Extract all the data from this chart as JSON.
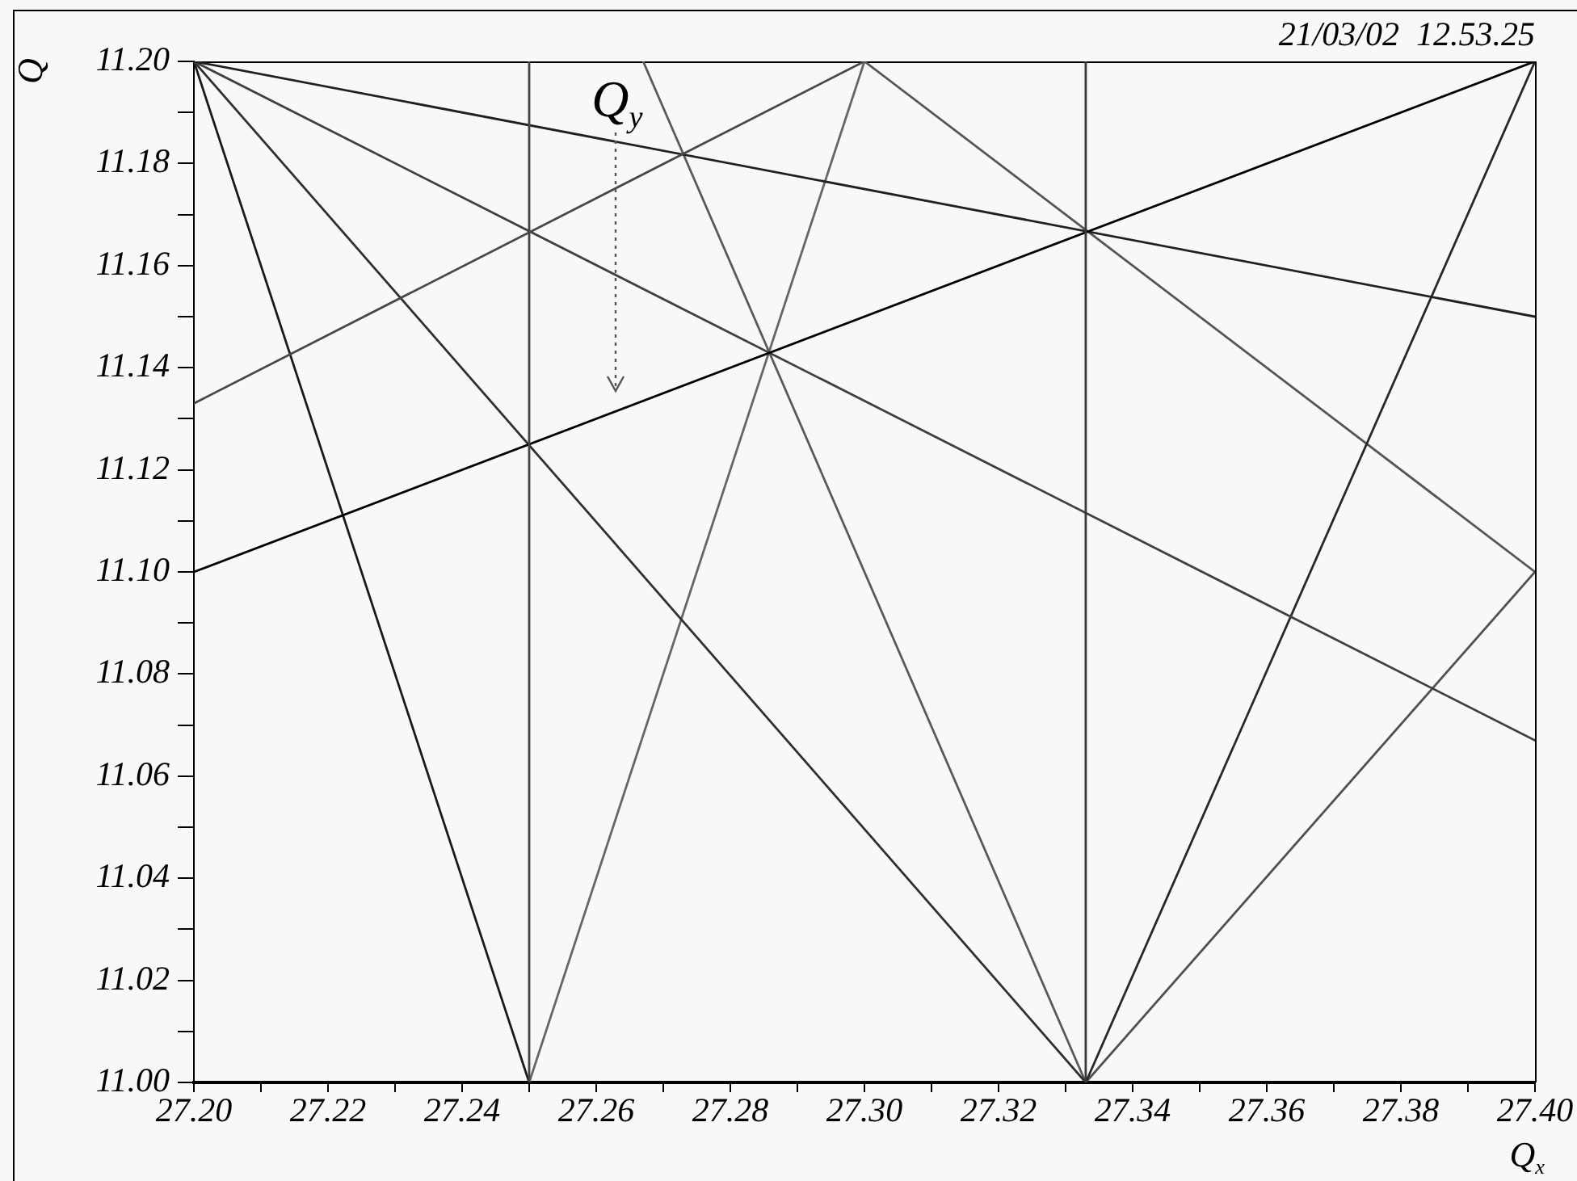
{
  "chart_data": {
    "type": "line",
    "xlabel": "Q$_{x}$",
    "ylabel": "Q",
    "annotations": [
      "21/03/02  12.53.25",
      "Q$_{y}$"
    ],
    "xlim": [
      27.2,
      27.4
    ],
    "ylim": [
      11.0,
      11.2
    ],
    "xticks": [
      {
        "value": 27.2,
        "label": "27.20"
      },
      {
        "value": 27.21,
        "label": null
      },
      {
        "value": 27.22,
        "label": "27.22"
      },
      {
        "value": 27.23,
        "label": null
      },
      {
        "value": 27.24,
        "label": "27.24"
      },
      {
        "value": 27.25,
        "label": null
      },
      {
        "value": 27.26,
        "label": "27.26"
      },
      {
        "value": 27.27,
        "label": null
      },
      {
        "value": 27.28,
        "label": "27.28"
      },
      {
        "value": 27.29,
        "label": null
      },
      {
        "value": 27.3,
        "label": "27.30"
      },
      {
        "value": 27.31,
        "label": null
      },
      {
        "value": 27.32,
        "label": "27.32"
      },
      {
        "value": 27.33,
        "label": null
      },
      {
        "value": 27.34,
        "label": "27.34"
      },
      {
        "value": 27.35,
        "label": null
      },
      {
        "value": 27.36,
        "label": "27.36"
      },
      {
        "value": 27.37,
        "label": null
      },
      {
        "value": 27.38,
        "label": "27.38"
      },
      {
        "value": 27.39,
        "label": null
      },
      {
        "value": 27.4,
        "label": "27.40"
      }
    ],
    "yticks": [
      {
        "value": 11.0,
        "label": "11.00"
      },
      {
        "value": 11.01,
        "label": null
      },
      {
        "value": 11.02,
        "label": "11.02"
      },
      {
        "value": 11.03,
        "label": null
      },
      {
        "value": 11.04,
        "label": "11.04"
      },
      {
        "value": 11.05,
        "label": null
      },
      {
        "value": 11.06,
        "label": "11.06"
      },
      {
        "value": 11.07,
        "label": null
      },
      {
        "value": 11.08,
        "label": "11.08"
      },
      {
        "value": 11.09,
        "label": null
      },
      {
        "value": 11.1,
        "label": "11.10"
      },
      {
        "value": 11.11,
        "label": null
      },
      {
        "value": 11.12,
        "label": "11.12"
      },
      {
        "value": 11.13,
        "label": null
      },
      {
        "value": 11.14,
        "label": "11.14"
      },
      {
        "value": 11.15,
        "label": null
      },
      {
        "value": 11.16,
        "label": "11.16"
      },
      {
        "value": 11.17,
        "label": null
      },
      {
        "value": 11.18,
        "label": "11.18"
      },
      {
        "value": 11.19,
        "label": null
      },
      {
        "value": 11.2,
        "label": "11.20"
      }
    ],
    "ref_lines": [
      {
        "axis": "x",
        "value": 27.25,
        "color": "#444444"
      },
      {
        "axis": "x",
        "value": 27.333,
        "color": "#3a3a3a"
      }
    ],
    "series": [
      {
        "color": "#000000",
        "x": [
          27.2,
          27.4
        ],
        "values": [
          11.1,
          11.2
        ]
      },
      {
        "color": "#484848",
        "x": [
          27.2,
          27.3
        ],
        "values": [
          11.133,
          11.2
        ]
      },
      {
        "color": "#202020",
        "x": [
          27.2,
          27.4
        ],
        "values": [
          11.2,
          11.15
        ]
      },
      {
        "color": "#404040",
        "x": [
          27.2,
          27.4
        ],
        "values": [
          11.2,
          11.067
        ]
      },
      {
        "color": "#303030",
        "x": [
          27.2,
          27.333
        ],
        "values": [
          11.2,
          11.0
        ]
      },
      {
        "color": "#1a1a1a",
        "x": [
          27.2,
          27.25
        ],
        "values": [
          11.2,
          11.0
        ]
      },
      {
        "color": "#666666",
        "x": [
          27.25,
          27.3
        ],
        "values": [
          11.0,
          11.2
        ]
      },
      {
        "color": "#5a5a5a",
        "x": [
          27.267,
          27.333
        ],
        "values": [
          11.2,
          11.0
        ]
      },
      {
        "color": "#282828",
        "x": [
          27.333,
          27.4
        ],
        "values": [
          11.0,
          11.2
        ]
      },
      {
        "color": "#505050",
        "x": [
          27.333,
          27.4
        ],
        "values": [
          11.0,
          11.1
        ]
      },
      {
        "color": "#555555",
        "x": [
          27.3,
          27.4
        ],
        "values": [
          11.2,
          11.1
        ]
      }
    ]
  }
}
